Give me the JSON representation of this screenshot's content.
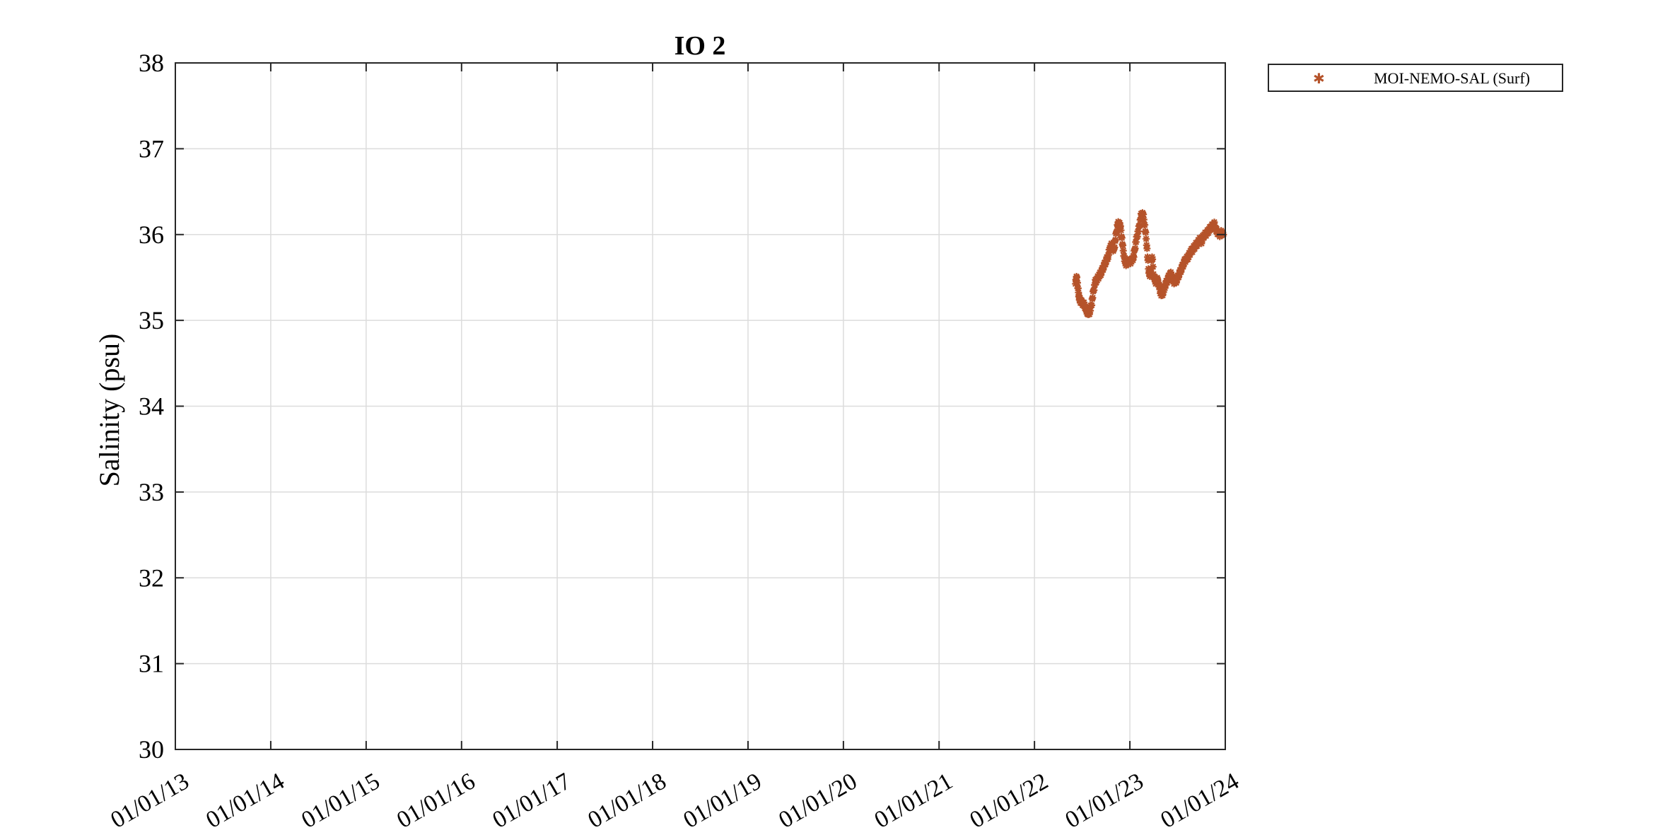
{
  "chart_data": {
    "type": "scatter",
    "title": "IO 2",
    "xlabel": "",
    "ylabel": "Salinity (psu)",
    "x_tick_labels": [
      "01/01/13",
      "01/01/14",
      "01/01/15",
      "01/01/16",
      "01/01/17",
      "01/01/18",
      "01/01/19",
      "01/01/20",
      "01/01/21",
      "01/01/22",
      "01/01/23",
      "01/01/24"
    ],
    "y_tick_labels": [
      "30",
      "31",
      "32",
      "33",
      "34",
      "35",
      "36",
      "37",
      "38"
    ],
    "xlim": [
      "2013-01-01",
      "2024-01-01"
    ],
    "ylim": [
      30,
      38
    ],
    "grid": true,
    "legend_position": "outside-top-right",
    "series": [
      {
        "name": "MOI-NEMO-SAL (Surf)",
        "color": "#b5532a",
        "marker": "asterisk",
        "points": [
          [
            "2022-06-07",
            35.45
          ],
          [
            "2022-06-12",
            35.5
          ],
          [
            "2022-06-17",
            35.35
          ],
          [
            "2022-06-22",
            35.25
          ],
          [
            "2022-06-27",
            35.22
          ],
          [
            "2022-07-04",
            35.2
          ],
          [
            "2022-07-11",
            35.18
          ],
          [
            "2022-07-18",
            35.12
          ],
          [
            "2022-07-25",
            35.08
          ],
          [
            "2022-08-01",
            35.1
          ],
          [
            "2022-08-08",
            35.2
          ],
          [
            "2022-08-15",
            35.35
          ],
          [
            "2022-08-22",
            35.45
          ],
          [
            "2022-08-29",
            35.48
          ],
          [
            "2022-09-05",
            35.52
          ],
          [
            "2022-09-12",
            35.55
          ],
          [
            "2022-09-19",
            35.6
          ],
          [
            "2022-09-26",
            35.65
          ],
          [
            "2022-10-03",
            35.7
          ],
          [
            "2022-10-10",
            35.75
          ],
          [
            "2022-10-17",
            35.85
          ],
          [
            "2022-10-24",
            35.88
          ],
          [
            "2022-10-31",
            35.8
          ],
          [
            "2022-11-07",
            35.95
          ],
          [
            "2022-11-14",
            36.1
          ],
          [
            "2022-11-21",
            36.15
          ],
          [
            "2022-11-28",
            36.05
          ],
          [
            "2022-12-05",
            35.85
          ],
          [
            "2022-12-12",
            35.7
          ],
          [
            "2022-12-19",
            35.65
          ],
          [
            "2022-12-26",
            35.7
          ],
          [
            "2023-01-02",
            35.68
          ],
          [
            "2023-01-09",
            35.7
          ],
          [
            "2023-01-16",
            35.75
          ],
          [
            "2023-01-23",
            35.9
          ],
          [
            "2023-01-30",
            36.0
          ],
          [
            "2023-02-06",
            36.1
          ],
          [
            "2023-02-13",
            36.22
          ],
          [
            "2023-02-20",
            36.25
          ],
          [
            "2023-02-27",
            36.1
          ],
          [
            "2023-03-06",
            35.9
          ],
          [
            "2023-03-13",
            35.6
          ],
          [
            "2023-03-20",
            35.5
          ],
          [
            "2023-03-27",
            35.75
          ],
          [
            "2023-04-03",
            35.5
          ],
          [
            "2023-04-10",
            35.45
          ],
          [
            "2023-04-17",
            35.48
          ],
          [
            "2023-04-24",
            35.38
          ],
          [
            "2023-05-01",
            35.3
          ],
          [
            "2023-05-08",
            35.32
          ],
          [
            "2023-05-15",
            35.4
          ],
          [
            "2023-05-22",
            35.45
          ],
          [
            "2023-05-29",
            35.5
          ],
          [
            "2023-06-05",
            35.55
          ],
          [
            "2023-06-12",
            35.5
          ],
          [
            "2023-06-19",
            35.45
          ],
          [
            "2023-06-26",
            35.45
          ],
          [
            "2023-07-03",
            35.5
          ],
          [
            "2023-07-10",
            35.55
          ],
          [
            "2023-07-17",
            35.6
          ],
          [
            "2023-07-24",
            35.65
          ],
          [
            "2023-07-31",
            35.7
          ],
          [
            "2023-08-07",
            35.72
          ],
          [
            "2023-08-14",
            35.75
          ],
          [
            "2023-08-21",
            35.8
          ],
          [
            "2023-08-28",
            35.82
          ],
          [
            "2023-09-04",
            35.85
          ],
          [
            "2023-09-11",
            35.88
          ],
          [
            "2023-09-18",
            35.9
          ],
          [
            "2023-09-25",
            35.95
          ],
          [
            "2023-10-02",
            35.92
          ],
          [
            "2023-10-09",
            35.98
          ],
          [
            "2023-10-16",
            36.0
          ],
          [
            "2023-10-23",
            36.02
          ],
          [
            "2023-10-30",
            36.05
          ],
          [
            "2023-11-06",
            36.08
          ],
          [
            "2023-11-13",
            36.1
          ],
          [
            "2023-11-20",
            36.12
          ],
          [
            "2023-11-27",
            36.05
          ],
          [
            "2023-12-04",
            36.02
          ],
          [
            "2023-12-11",
            36.0
          ],
          [
            "2023-12-18",
            36.03
          ],
          [
            "2023-12-25",
            36.0
          ]
        ]
      }
    ]
  },
  "legend": {
    "entries": [
      {
        "label": "MOI-NEMO-SAL (Surf)",
        "marker_icon": "asterisk-marker-icon"
      }
    ]
  }
}
